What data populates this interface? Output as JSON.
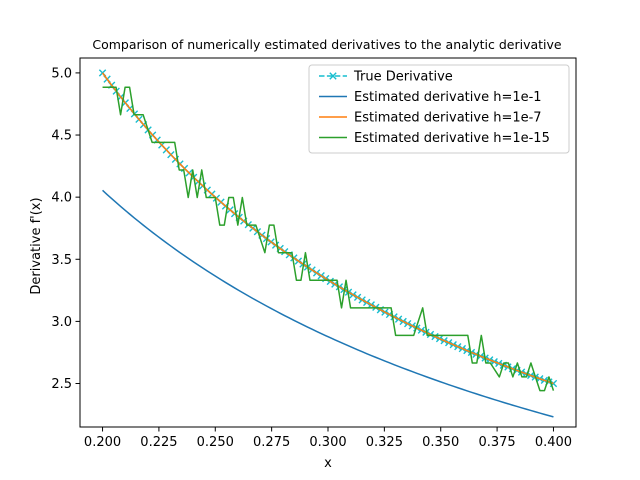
{
  "chart_data": {
    "type": "line",
    "title": "Comparison of numerically estimated derivatives to the analytic derivative",
    "xlabel": "x",
    "ylabel": "Derivative f'(x)",
    "xlim": [
      0.19,
      0.41
    ],
    "ylim": [
      2.15,
      5.12
    ],
    "xticks": [
      0.2,
      0.225,
      0.25,
      0.275,
      0.3,
      0.325,
      0.35,
      0.375,
      0.4
    ],
    "xtick_labels": [
      "0.200",
      "0.225",
      "0.250",
      "0.275",
      "0.300",
      "0.325",
      "0.350",
      "0.375",
      "0.400"
    ],
    "yticks": [
      2.5,
      3.0,
      3.5,
      4.0,
      4.5,
      5.0
    ],
    "ytick_labels": [
      "2.5",
      "3.0",
      "3.5",
      "4.0",
      "4.5",
      "5.0"
    ],
    "grid": false,
    "legend_position": "top-right",
    "series": [
      {
        "name": "True Derivative",
        "color": "#17becf",
        "style": "dashed-x",
        "function": "1/x",
        "x_range": [
          0.2,
          0.4
        ],
        "n_points": 100
      },
      {
        "name": "Estimated derivative h=1e-1",
        "color": "#1f77b4",
        "style": "solid",
        "function": "ln(1+0.1/x)/0.1",
        "x_range": [
          0.2,
          0.4
        ],
        "n_points": 100
      },
      {
        "name": "Estimated derivative h=1e-7",
        "color": "#ff7f0e",
        "style": "solid",
        "function": "1/x",
        "x_range": [
          0.2,
          0.4
        ],
        "n_points": 100
      },
      {
        "name": "Estimated derivative h=1e-15",
        "color": "#2ca02c",
        "style": "solid",
        "x": [
          0.2,
          0.206,
          0.208,
          0.21,
          0.212,
          0.214,
          0.218,
          0.222,
          0.226,
          0.232,
          0.234,
          0.236,
          0.238,
          0.24,
          0.242,
          0.244,
          0.246,
          0.248,
          0.25,
          0.252,
          0.254,
          0.256,
          0.258,
          0.26,
          0.262,
          0.264,
          0.266,
          0.268,
          0.272,
          0.274,
          0.276,
          0.278,
          0.28,
          0.282,
          0.284,
          0.286,
          0.288,
          0.29,
          0.292,
          0.294,
          0.296,
          0.3,
          0.304,
          0.306,
          0.308,
          0.31,
          0.312,
          0.316,
          0.32,
          0.324,
          0.328,
          0.33,
          0.334,
          0.338,
          0.342,
          0.344,
          0.346,
          0.35,
          0.354,
          0.358,
          0.362,
          0.364,
          0.366,
          0.368,
          0.37,
          0.372,
          0.376,
          0.378,
          0.38,
          0.382,
          0.384,
          0.386,
          0.388,
          0.39,
          0.392,
          0.394,
          0.396,
          0.398,
          0.4
        ],
        "y": [
          4.885,
          4.885,
          4.663,
          4.885,
          4.885,
          4.663,
          4.663,
          4.441,
          4.441,
          4.441,
          4.219,
          4.219,
          3.997,
          4.219,
          3.997,
          4.219,
          3.997,
          3.997,
          3.997,
          3.775,
          3.775,
          3.997,
          3.997,
          3.775,
          3.997,
          3.775,
          3.775,
          3.775,
          3.553,
          3.775,
          3.775,
          3.553,
          3.553,
          3.553,
          3.553,
          3.331,
          3.331,
          3.553,
          3.331,
          3.331,
          3.331,
          3.331,
          3.331,
          3.109,
          3.331,
          3.109,
          3.109,
          3.109,
          3.109,
          3.109,
          3.109,
          2.887,
          2.887,
          2.887,
          3.109,
          2.887,
          2.887,
          2.887,
          2.887,
          2.887,
          2.887,
          2.665,
          2.665,
          2.887,
          2.665,
          2.665,
          2.553,
          2.665,
          2.665,
          2.553,
          2.665,
          2.553,
          2.553,
          2.665,
          2.553,
          2.443,
          2.443,
          2.553,
          2.443
        ]
      }
    ]
  }
}
